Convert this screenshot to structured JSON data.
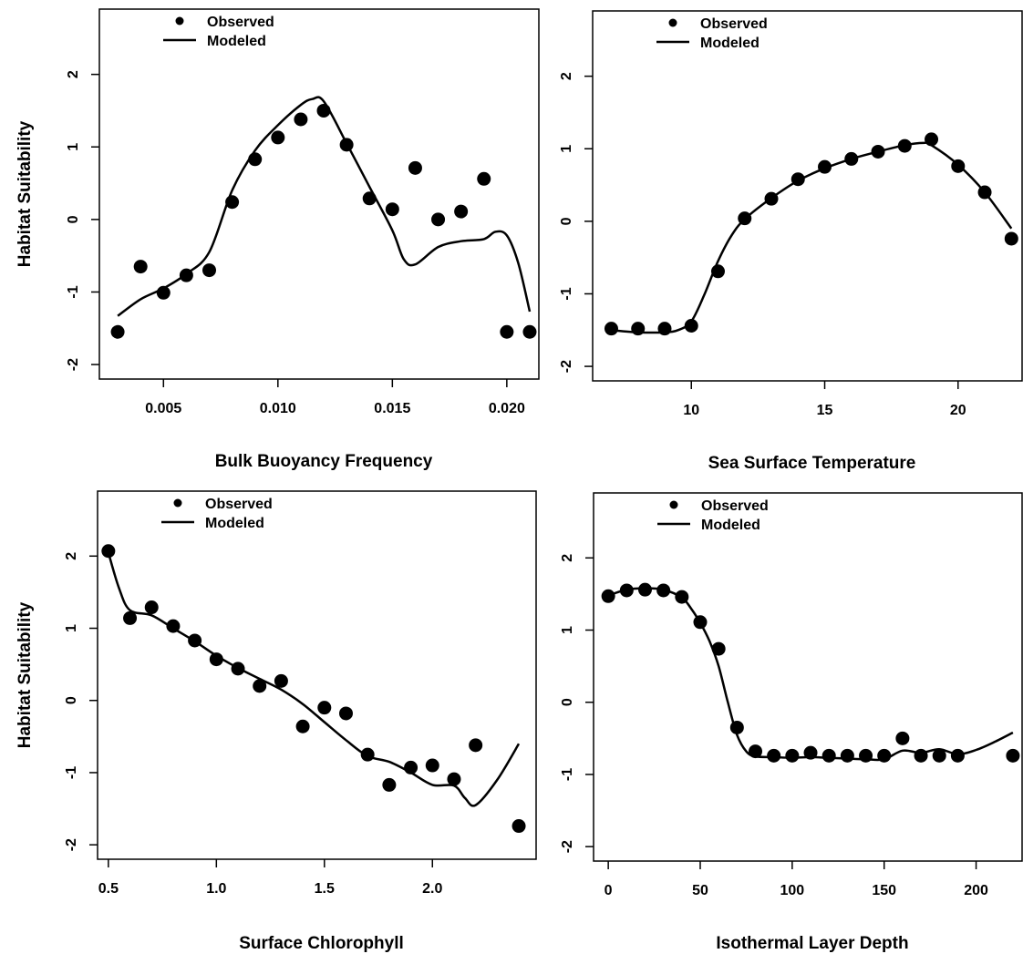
{
  "chart_data": [
    {
      "type": "scatter",
      "xlabel": "Bulk Buoyancy Frequency",
      "ylabel": "Habitat Suitability",
      "xlim": [
        0.0022,
        0.0214
      ],
      "ylim": [
        -2.2,
        2.9
      ],
      "xticks": [
        0.005,
        0.01,
        0.015,
        0.02
      ],
      "xtick_labels": [
        "0.005",
        "0.010",
        "0.015",
        "0.020"
      ],
      "yticks": [
        -2,
        -1,
        0,
        1,
        2
      ],
      "ytick_labels": [
        "-2",
        "-1",
        "0",
        "1",
        "2"
      ],
      "legend": {
        "position": "top-left",
        "entries": [
          "Observed",
          "Modeled"
        ]
      },
      "series": [
        {
          "name": "Observed",
          "kind": "points",
          "x": [
            0.003,
            0.004,
            0.005,
            0.006,
            0.007,
            0.008,
            0.009,
            0.01,
            0.011,
            0.012,
            0.013,
            0.014,
            0.015,
            0.016,
            0.017,
            0.018,
            0.019,
            0.02,
            0.021
          ],
          "y": [
            -1.55,
            -0.65,
            -1.01,
            -0.77,
            -0.7,
            0.24,
            0.83,
            1.13,
            1.38,
            1.5,
            1.03,
            0.29,
            0.14,
            0.71,
            0.0,
            0.11,
            0.56,
            -1.55,
            -1.55
          ]
        },
        {
          "name": "Modeled",
          "kind": "line",
          "x": [
            0.003,
            0.004,
            0.005,
            0.006,
            0.007,
            0.008,
            0.009,
            0.01,
            0.011,
            0.0115,
            0.012,
            0.013,
            0.014,
            0.015,
            0.0155,
            0.016,
            0.017,
            0.018,
            0.019,
            0.0195,
            0.02,
            0.0205,
            0.021
          ],
          "y": [
            -1.33,
            -1.1,
            -0.95,
            -0.75,
            -0.45,
            0.4,
            0.95,
            1.3,
            1.58,
            1.66,
            1.63,
            1.05,
            0.45,
            -0.15,
            -0.55,
            -0.62,
            -0.38,
            -0.3,
            -0.27,
            -0.17,
            -0.22,
            -0.6,
            -1.27
          ]
        }
      ]
    },
    {
      "type": "scatter",
      "xlabel": "Sea Surface Temperature",
      "ylabel": "",
      "xlim": [
        6.3,
        22.4
      ],
      "ylim": [
        -2.2,
        2.9
      ],
      "xticks": [
        10,
        15,
        20
      ],
      "xtick_labels": [
        "10",
        "15",
        "20"
      ],
      "yticks": [
        -2,
        -1,
        0,
        1,
        2
      ],
      "ytick_labels": [
        "-2",
        "-1",
        "0",
        "1",
        "2"
      ],
      "legend": {
        "position": "top-left",
        "entries": [
          "Observed",
          "Modeled"
        ]
      },
      "series": [
        {
          "name": "Observed",
          "kind": "points",
          "x": [
            7,
            8,
            9,
            10,
            11,
            12,
            13,
            14,
            15,
            16,
            17,
            18,
            19,
            20,
            21,
            22
          ],
          "y": [
            -1.48,
            -1.48,
            -1.48,
            -1.44,
            -0.69,
            0.04,
            0.31,
            0.58,
            0.75,
            0.86,
            0.96,
            1.04,
            1.13,
            0.76,
            0.4,
            -0.24
          ]
        },
        {
          "name": "Modeled",
          "kind": "line",
          "x": [
            7,
            8,
            9,
            9.5,
            10,
            10.5,
            11,
            11.5,
            12,
            13,
            14,
            15,
            16,
            17,
            18,
            18.7,
            19,
            20,
            21,
            22
          ],
          "y": [
            -1.5,
            -1.53,
            -1.53,
            -1.5,
            -1.38,
            -1.0,
            -0.55,
            -0.2,
            0.03,
            0.32,
            0.56,
            0.73,
            0.86,
            0.96,
            1.05,
            1.08,
            1.05,
            0.78,
            0.4,
            -0.1
          ]
        }
      ]
    },
    {
      "type": "scatter",
      "xlabel": "Surface Chlorophyll",
      "ylabel": "Habitat Suitability",
      "xlim": [
        0.45,
        2.48
      ],
      "ylim": [
        -2.2,
        2.9
      ],
      "xticks": [
        0.5,
        1.0,
        1.5,
        2.0
      ],
      "xtick_labels": [
        "0.5",
        "1.0",
        "1.5",
        "2.0"
      ],
      "yticks": [
        -2,
        -1,
        0,
        1,
        2
      ],
      "ytick_labels": [
        "-2",
        "-1",
        "0",
        "1",
        "2"
      ],
      "legend": {
        "position": "top-left",
        "entries": [
          "Observed",
          "Modeled"
        ]
      },
      "series": [
        {
          "name": "Observed",
          "kind": "points",
          "x": [
            0.5,
            0.6,
            0.7,
            0.8,
            0.9,
            1.0,
            1.1,
            1.2,
            1.3,
            1.4,
            1.5,
            1.6,
            1.7,
            1.8,
            1.9,
            2.0,
            2.1,
            2.2,
            2.4
          ],
          "y": [
            2.07,
            1.14,
            1.29,
            1.03,
            0.83,
            0.57,
            0.44,
            0.2,
            0.27,
            -0.36,
            -0.1,
            -0.18,
            -0.75,
            -1.17,
            -0.93,
            -0.9,
            -1.09,
            -0.62,
            -1.74
          ]
        },
        {
          "name": "Modeled",
          "kind": "line",
          "x": [
            0.5,
            0.55,
            0.6,
            0.7,
            0.8,
            0.9,
            1.0,
            1.1,
            1.2,
            1.3,
            1.4,
            1.5,
            1.6,
            1.7,
            1.8,
            1.9,
            2.0,
            2.1,
            2.15,
            2.2,
            2.3,
            2.4
          ],
          "y": [
            2.05,
            1.55,
            1.25,
            1.18,
            1.0,
            0.82,
            0.62,
            0.45,
            0.3,
            0.15,
            -0.05,
            -0.3,
            -0.55,
            -0.77,
            -0.85,
            -1.0,
            -1.17,
            -1.18,
            -1.35,
            -1.45,
            -1.1,
            -0.6
          ]
        }
      ]
    },
    {
      "type": "scatter",
      "xlabel": "Isothermal Layer Depth",
      "ylabel": "",
      "xlim": [
        -8,
        225
      ],
      "ylim": [
        -2.2,
        2.9
      ],
      "xticks": [
        0,
        50,
        100,
        150,
        200
      ],
      "xtick_labels": [
        "0",
        "50",
        "100",
        "150",
        "200"
      ],
      "yticks": [
        -2,
        -1,
        0,
        1,
        2
      ],
      "ytick_labels": [
        "-2",
        "-1",
        "0",
        "1",
        "2"
      ],
      "legend": {
        "position": "top-left",
        "entries": [
          "Observed",
          "Modeled"
        ]
      },
      "series": [
        {
          "name": "Observed",
          "kind": "points",
          "x": [
            0,
            10,
            20,
            30,
            40,
            50,
            60,
            70,
            80,
            90,
            100,
            110,
            120,
            130,
            140,
            150,
            160,
            170,
            180,
            190,
            220
          ],
          "y": [
            1.47,
            1.55,
            1.56,
            1.55,
            1.46,
            1.11,
            0.74,
            -0.35,
            -0.68,
            -0.74,
            -0.74,
            -0.7,
            -0.74,
            -0.74,
            -0.74,
            -0.74,
            -0.5,
            -0.74,
            -0.74,
            -0.74,
            -0.74
          ]
        },
        {
          "name": "Modeled",
          "kind": "line",
          "x": [
            0,
            10,
            20,
            30,
            40,
            45,
            50,
            55,
            60,
            65,
            70,
            75,
            80,
            90,
            100,
            110,
            120,
            130,
            140,
            150,
            160,
            170,
            180,
            190,
            200,
            210,
            220
          ],
          "y": [
            1.48,
            1.56,
            1.58,
            1.56,
            1.45,
            1.3,
            1.1,
            0.85,
            0.5,
            0.0,
            -0.45,
            -0.68,
            -0.75,
            -0.76,
            -0.77,
            -0.76,
            -0.77,
            -0.78,
            -0.79,
            -0.79,
            -0.67,
            -0.7,
            -0.65,
            -0.72,
            -0.66,
            -0.55,
            -0.42
          ]
        }
      ]
    }
  ]
}
